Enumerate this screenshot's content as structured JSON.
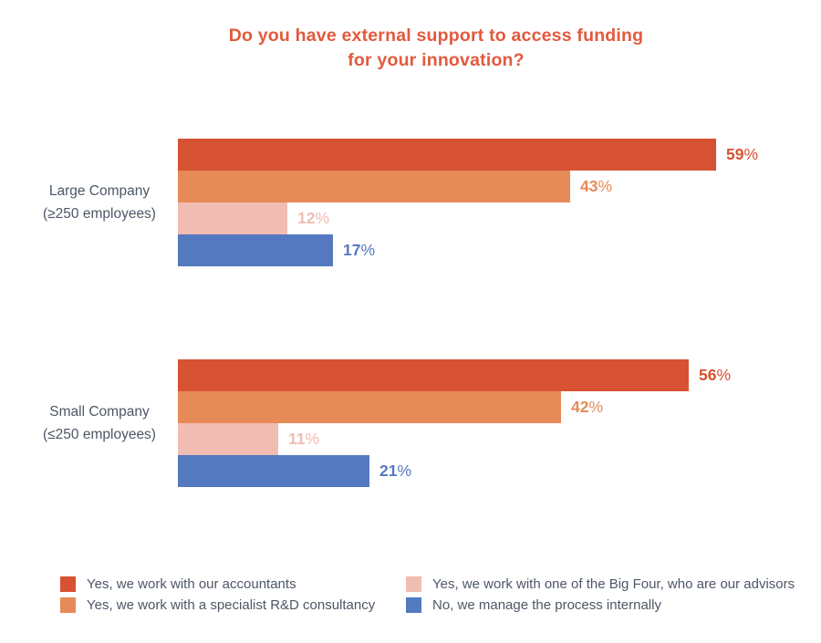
{
  "title_lines": [
    "Do you have external support to access funding",
    "for your innovation?"
  ],
  "colors": {
    "title": "#e25a3d",
    "text": "#4d5766",
    "background": "#ffffff",
    "series_red": "#d75233",
    "series_orange": "#e68a58",
    "series_pink": "#f1bcb2",
    "series_blue": "#5479c1"
  },
  "chart_data": {
    "type": "bar",
    "orientation": "horizontal",
    "title": "Do you have external support to access funding for your innovation?",
    "categories": [
      "Large Company (≥250 employees)",
      "Small Company (≤250 employees)"
    ],
    "category_labels": [
      [
        "Large Company",
        "(≥250 employees)"
      ],
      [
        "Small Company",
        "(≤250 employees)"
      ]
    ],
    "series": [
      {
        "name": "Yes, we work with our accountants",
        "color": "#d75233",
        "values": [
          59,
          56
        ]
      },
      {
        "name": "Yes, we work with a specialist R&D consultancy",
        "color": "#e68a58",
        "values": [
          43,
          42
        ]
      },
      {
        "name": "Yes, we work with one of the Big Four, who are our advisors",
        "color": "#f1bcb2",
        "values": [
          12,
          11
        ]
      },
      {
        "name": "No, we manage the process internally",
        "color": "#5479c1",
        "values": [
          17,
          21
        ]
      }
    ],
    "value_suffix": "%",
    "xlim": [
      0,
      70
    ],
    "grid": false,
    "axis_ticks_visible": false,
    "legend_position": "bottom-two-columns"
  },
  "legend": {
    "columns": [
      [
        0,
        1
      ],
      [
        2,
        3
      ]
    ]
  }
}
